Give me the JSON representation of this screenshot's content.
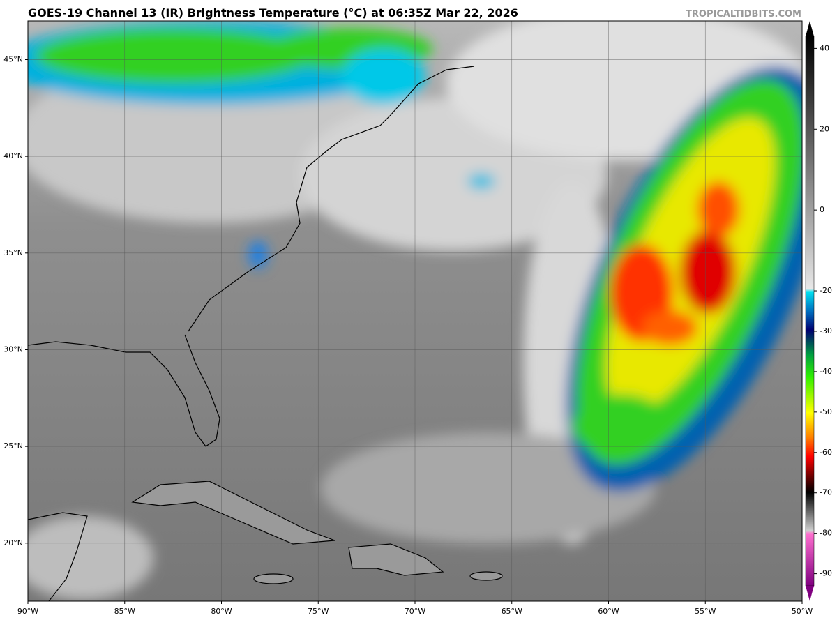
{
  "title": "GOES-19 Channel 13 (IR) Brightness Temperature (°C) at 06:35Z Mar 22, 2026",
  "credit": "TROPICALTIDBITS.COM",
  "map": {
    "xlim": [
      -90,
      -50
    ],
    "ylim": [
      17,
      47
    ],
    "xticks": [
      {
        "value": -90,
        "label": "90°W"
      },
      {
        "value": -85,
        "label": "85°W"
      },
      {
        "value": -80,
        "label": "80°W"
      },
      {
        "value": -75,
        "label": "75°W"
      },
      {
        "value": -70,
        "label": "70°W"
      },
      {
        "value": -65,
        "label": "65°W"
      },
      {
        "value": -60,
        "label": "60°W"
      },
      {
        "value": -55,
        "label": "55°W"
      },
      {
        "value": -50,
        "label": "50°W"
      }
    ],
    "yticks": [
      {
        "value": 20,
        "label": "20°N"
      },
      {
        "value": 25,
        "label": "25°N"
      },
      {
        "value": 30,
        "label": "30°N"
      },
      {
        "value": 35,
        "label": "35°N"
      },
      {
        "value": 40,
        "label": "40°N"
      },
      {
        "value": 45,
        "label": "45°N"
      }
    ]
  },
  "colorbar": {
    "lim": [
      -93,
      43
    ],
    "ticks": [
      40,
      20,
      0,
      -20,
      -30,
      -40,
      -50,
      -60,
      -70,
      -80,
      -90
    ]
  }
}
